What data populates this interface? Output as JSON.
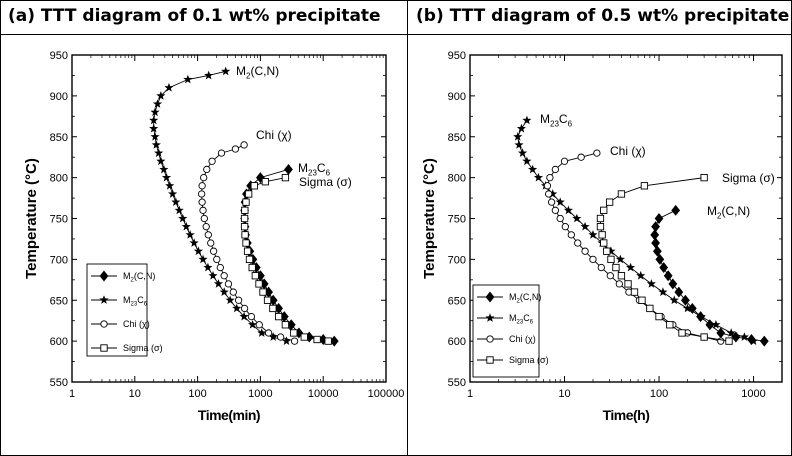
{
  "panels": [
    {
      "title": "(a)  TTT  diagram  of  0.1  wt%  precipitate",
      "chart_data": {
        "type": "line",
        "xscale": "log",
        "xlim": [
          1,
          100000
        ],
        "ylim": [
          550,
          950
        ],
        "xlabel": "Time(min)",
        "ylabel": "Temperature (°C)",
        "xtick_labels": [
          "1",
          "10",
          "100",
          "1000",
          "10000",
          "100000"
        ],
        "ytick_labels": [
          "550",
          "600",
          "650",
          "700",
          "750",
          "800",
          "850",
          "900",
          "950"
        ],
        "legend_position": "bottom-left",
        "series": [
          {
            "name": "M2(C,N)",
            "marker": "diamond-filled",
            "label_main": "M",
            "label_sub": "2",
            "label_rest": "(C,N)",
            "points": [
              [
                2800,
                810
              ],
              [
                1000,
                800
              ],
              [
                700,
                790
              ],
              [
                600,
                780
              ],
              [
                570,
                770
              ],
              [
                560,
                760
              ],
              [
                560,
                750
              ],
              [
                570,
                740
              ],
              [
                580,
                730
              ],
              [
                620,
                720
              ],
              [
                680,
                710
              ],
              [
                760,
                700
              ],
              [
                860,
                690
              ],
              [
                1000,
                680
              ],
              [
                1150,
                670
              ],
              [
                1350,
                660
              ],
              [
                1600,
                650
              ],
              [
                1950,
                640
              ],
              [
                2400,
                630
              ],
              [
                3100,
                620
              ],
              [
                4100,
                610
              ],
              [
                6000,
                605
              ],
              [
                10000,
                602
              ],
              [
                15000,
                600
              ]
            ]
          },
          {
            "name": "M23C6",
            "marker": "star",
            "label_main": "M",
            "label_sub": "23",
            "label_rest": "C",
            "label_sub2": "6",
            "points": [
              [
                280,
                930
              ],
              [
                150,
                925
              ],
              [
                70,
                920
              ],
              [
                35,
                910
              ],
              [
                26,
                900
              ],
              [
                23,
                890
              ],
              [
                21,
                880
              ],
              [
                20,
                870
              ],
              [
                20,
                860
              ],
              [
                21,
                850
              ],
              [
                22,
                840
              ],
              [
                24,
                830
              ],
              [
                26,
                820
              ],
              [
                29,
                810
              ],
              [
                32,
                800
              ],
              [
                36,
                790
              ],
              [
                40,
                780
              ],
              [
                45,
                770
              ],
              [
                51,
                760
              ],
              [
                58,
                750
              ],
              [
                66,
                740
              ],
              [
                76,
                730
              ],
              [
                88,
                720
              ],
              [
                103,
                710
              ],
              [
                122,
                700
              ],
              [
                146,
                690
              ],
              [
                176,
                680
              ],
              [
                215,
                670
              ],
              [
                265,
                660
              ],
              [
                330,
                650
              ],
              [
                420,
                640
              ],
              [
                550,
                630
              ],
              [
                750,
                620
              ],
              [
                1050,
                610
              ],
              [
                1600,
                605
              ],
              [
                2600,
                600
              ]
            ]
          },
          {
            "name": "Chi (χ)",
            "marker": "circle-open",
            "label_text": "Chi (χ)",
            "points": [
              [
                550,
                840
              ],
              [
                400,
                835
              ],
              [
                240,
                830
              ],
              [
                170,
                820
              ],
              [
                140,
                810
              ],
              [
                125,
                800
              ],
              [
                118,
                790
              ],
              [
                116,
                780
              ],
              [
                118,
                770
              ],
              [
                122,
                760
              ],
              [
                128,
                750
              ],
              [
                137,
                740
              ],
              [
                148,
                730
              ],
              [
                162,
                720
              ],
              [
                180,
                710
              ],
              [
                202,
                700
              ],
              [
                230,
                690
              ],
              [
                265,
                680
              ],
              [
                310,
                670
              ],
              [
                370,
                660
              ],
              [
                450,
                650
              ],
              [
                560,
                640
              ],
              [
                720,
                630
              ],
              [
                960,
                620
              ],
              [
                1350,
                610
              ],
              [
                2100,
                605
              ],
              [
                3500,
                600
              ]
            ]
          },
          {
            "name": "Sigma (σ)",
            "marker": "square-open",
            "label_text": "Sigma (σ)",
            "points": [
              [
                2500,
                800
              ],
              [
                1200,
                795
              ],
              [
                800,
                790
              ],
              [
                650,
                780
              ],
              [
                590,
                770
              ],
              [
                565,
                760
              ],
              [
                560,
                750
              ],
              [
                560,
                740
              ],
              [
                570,
                730
              ],
              [
                590,
                720
              ],
              [
                625,
                710
              ],
              [
                670,
                700
              ],
              [
                740,
                690
              ],
              [
                830,
                680
              ],
              [
                950,
                670
              ],
              [
                1100,
                660
              ],
              [
                1300,
                650
              ],
              [
                1580,
                640
              ],
              [
                1950,
                630
              ],
              [
                2500,
                620
              ],
              [
                3400,
                610
              ],
              [
                5000,
                605
              ],
              [
                8000,
                602
              ],
              [
                12000,
                600
              ]
            ]
          }
        ]
      }
    },
    {
      "title": "(b)  TTT  diagram  of  0.5  wt%  precipitate",
      "chart_data": {
        "type": "line",
        "xscale": "log",
        "xlim": [
          1,
          2000
        ],
        "ylim": [
          550,
          950
        ],
        "xlabel": "Time(h)",
        "ylabel": "Temperature (°C)",
        "xtick_labels": [
          "1",
          "10",
          "100",
          "1000"
        ],
        "ytick_labels": [
          "550",
          "600",
          "650",
          "700",
          "750",
          "800",
          "850",
          "900",
          "950"
        ],
        "legend_position": "bottom-left",
        "series": [
          {
            "name": "M2(C,N)",
            "marker": "diamond-filled",
            "label_main": "M",
            "label_sub": "2",
            "label_rest": "(C,N)",
            "points": [
              [
                150,
                760
              ],
              [
                100,
                750
              ],
              [
                92,
                740
              ],
              [
                90,
                730
              ],
              [
                92,
                720
              ],
              [
                96,
                710
              ],
              [
                102,
                700
              ],
              [
                112,
                690
              ],
              [
                125,
                680
              ],
              [
                140,
                670
              ],
              [
                162,
                660
              ],
              [
                190,
                650
              ],
              [
                225,
                640
              ],
              [
                275,
                630
              ],
              [
                345,
                620
              ],
              [
                450,
                610
              ],
              [
                650,
                605
              ],
              [
                950,
                602
              ],
              [
                1300,
                600
              ]
            ]
          },
          {
            "name": "M23C6",
            "marker": "star",
            "label_main": "M",
            "label_sub": "23",
            "label_rest": "C",
            "label_sub2": "6",
            "points": [
              [
                4,
                870
              ],
              [
                3.5,
                860
              ],
              [
                3.2,
                850
              ],
              [
                3.3,
                840
              ],
              [
                3.6,
                830
              ],
              [
                4,
                820
              ],
              [
                4.6,
                810
              ],
              [
                5.3,
                800
              ],
              [
                6.3,
                790
              ],
              [
                7.5,
                780
              ],
              [
                9,
                770
              ],
              [
                11,
                760
              ],
              [
                13.5,
                750
              ],
              [
                16.5,
                740
              ],
              [
                20,
                730
              ],
              [
                25,
                720
              ],
              [
                31,
                710
              ],
              [
                39,
                700
              ],
              [
                50,
                690
              ],
              [
                64,
                680
              ],
              [
                83,
                670
              ],
              [
                110,
                660
              ],
              [
                145,
                650
              ],
              [
                200,
                640
              ],
              [
                280,
                630
              ],
              [
                400,
                620
              ],
              [
                580,
                610
              ],
              [
                800,
                605
              ],
              [
                1000,
                600
              ]
            ]
          },
          {
            "name": "Chi (χ)",
            "marker": "circle-open",
            "label_text": "Chi (χ)",
            "points": [
              [
                22,
                830
              ],
              [
                15,
                825
              ],
              [
                10,
                820
              ],
              [
                8,
                810
              ],
              [
                7,
                800
              ],
              [
                6.6,
                790
              ],
              [
                6.8,
                780
              ],
              [
                7.3,
                770
              ],
              [
                8,
                760
              ],
              [
                9,
                750
              ],
              [
                10.2,
                740
              ],
              [
                11.8,
                730
              ],
              [
                13.8,
                720
              ],
              [
                16.5,
                710
              ],
              [
                20,
                700
              ],
              [
                24.5,
                690
              ],
              [
                30.5,
                680
              ],
              [
                38,
                670
              ],
              [
                48,
                660
              ],
              [
                62,
                650
              ],
              [
                80,
                640
              ],
              [
                105,
                630
              ],
              [
                140,
                620
              ],
              [
                200,
                610
              ],
              [
                300,
                605
              ],
              [
                450,
                600
              ]
            ]
          },
          {
            "name": "Sigma (σ)",
            "marker": "square-open",
            "label_text": "Sigma (σ)",
            "points": [
              [
                300,
                800
              ],
              [
                70,
                790
              ],
              [
                40,
                780
              ],
              [
                30,
                770
              ],
              [
                26,
                760
              ],
              [
                24,
                750
              ],
              [
                24,
                740
              ],
              [
                25,
                730
              ],
              [
                26,
                720
              ],
              [
                28,
                710
              ],
              [
                31,
                700
              ],
              [
                35,
                690
              ],
              [
                40,
                680
              ],
              [
                47,
                670
              ],
              [
                55,
                660
              ],
              [
                66,
                650
              ],
              [
                80,
                640
              ],
              [
                100,
                630
              ],
              [
                130,
                620
              ],
              [
                175,
                610
              ],
              [
                300,
                605
              ],
              [
                550,
                600
              ]
            ]
          }
        ]
      }
    }
  ]
}
